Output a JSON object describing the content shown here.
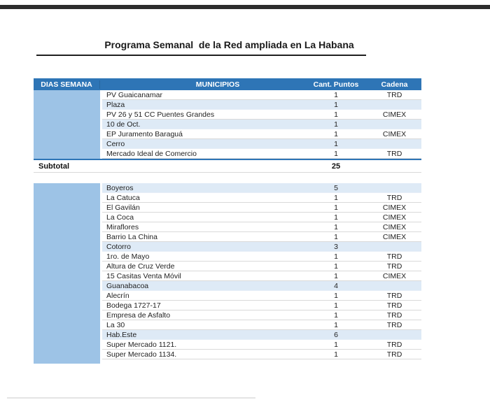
{
  "page": {
    "title": "Programa Semanal  de la Red ampliada en La Habana"
  },
  "colors": {
    "header_blue": "#2E75B6",
    "day_column_blue": "#9DC3E6",
    "band_light_blue": "#DEEAF6",
    "subtotal_rule_blue": "#2E75B6",
    "top_bar_dark": "#2D2D2D"
  },
  "table": {
    "columns": [
      "DIAS SEMANA",
      "MUNICIPIOS",
      "Cant. Puntos",
      "Cadena"
    ],
    "sections": [
      {
        "rows": [
          {
            "municipio": "PV Guaicanamar",
            "puntos": "1",
            "cadena": "TRD",
            "highlight": false
          },
          {
            "municipio": "Plaza",
            "puntos": "1",
            "cadena": "",
            "highlight": true
          },
          {
            "municipio": "PV 26 y 51 CC Puentes Grandes",
            "puntos": "1",
            "cadena": "CIMEX",
            "highlight": false
          },
          {
            "municipio": "10 de Oct.",
            "puntos": "1",
            "cadena": "",
            "highlight": true
          },
          {
            "municipio": "EP Juramento Baraguá",
            "puntos": "1",
            "cadena": "CIMEX",
            "highlight": false
          },
          {
            "municipio": "Cerro",
            "puntos": "1",
            "cadena": "",
            "highlight": true
          },
          {
            "municipio": "Mercado Ideal de Comercio",
            "puntos": "1",
            "cadena": "TRD",
            "highlight": false
          }
        ],
        "subtotal": {
          "label": "Subtotal",
          "value": "25"
        }
      },
      {
        "rows": [
          {
            "municipio": "Boyeros",
            "puntos": "5",
            "cadena": "",
            "highlight": true
          },
          {
            "municipio": "La Catuca",
            "puntos": "1",
            "cadena": "TRD",
            "highlight": false
          },
          {
            "municipio": "El Gavilán",
            "puntos": "1",
            "cadena": "CIMEX",
            "highlight": false
          },
          {
            "municipio": "La Coca",
            "puntos": "1",
            "cadena": "CIMEX",
            "highlight": false
          },
          {
            "municipio": "Miraflores",
            "puntos": "1",
            "cadena": "CIMEX",
            "highlight": false
          },
          {
            "municipio": "Barrio La China",
            "puntos": "1",
            "cadena": "CIMEX",
            "highlight": false
          },
          {
            "municipio": "Cotorro",
            "puntos": "3",
            "cadena": "",
            "highlight": true
          },
          {
            "municipio": "1ro. de Mayo",
            "puntos": "1",
            "cadena": "TRD",
            "highlight": false
          },
          {
            "municipio": "Altura de Cruz Verde",
            "puntos": "1",
            "cadena": "TRD",
            "highlight": false
          },
          {
            "municipio": "15 Casitas Venta Móvil",
            "puntos": "1",
            "cadena": "CIMEX",
            "highlight": false
          },
          {
            "municipio": "Guanabacoa",
            "puntos": "4",
            "cadena": "",
            "highlight": true
          },
          {
            "municipio": "Alecrín",
            "puntos": "1",
            "cadena": "TRD",
            "highlight": false
          },
          {
            "municipio": "Bodega 1727-17",
            "puntos": "1",
            "cadena": "TRD",
            "highlight": false
          },
          {
            "municipio": "Empresa de Asfalto",
            "puntos": "1",
            "cadena": "TRD",
            "highlight": false
          },
          {
            "municipio": "La 30",
            "puntos": "1",
            "cadena": "TRD",
            "highlight": false
          },
          {
            "municipio": "Hab.Este",
            "puntos": "6",
            "cadena": "",
            "highlight": true
          },
          {
            "municipio": "Super Mercado 1121.",
            "puntos": "1",
            "cadena": "TRD",
            "highlight": false
          },
          {
            "municipio": "Super Mercado 1134.",
            "puntos": "1",
            "cadena": "TRD",
            "highlight": false
          }
        ]
      }
    ]
  }
}
